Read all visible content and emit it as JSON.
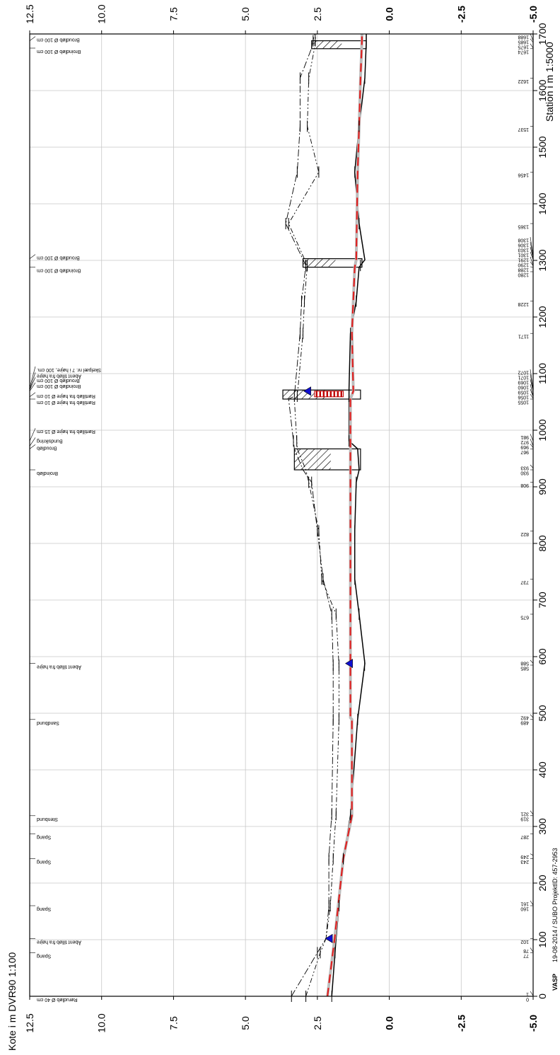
{
  "page": {
    "y_axis_title": "Kote i m DVR90 1:100",
    "x_axis_title": "Station i m 1:5000",
    "footer": {
      "logo": "VASP",
      "info": "19-08-2014 / SUBO   ProjektID: 457-2953"
    }
  },
  "chart_data": {
    "type": "line",
    "orientation": "rotated-90-clockwise",
    "grid": true,
    "x_ticks": [
      "0",
      "100",
      "200",
      "300",
      "400",
      "500",
      "600",
      "700",
      "800",
      "900",
      "1000",
      "1100",
      "1200",
      "1300",
      "1400",
      "1500",
      "1600",
      "1700"
    ],
    "x_range": [
      0,
      1700
    ],
    "y_ticks": [
      "12.5",
      "10.0",
      "7.5",
      "5.0",
      "2.5",
      "0.0",
      "-2.5",
      "-5.0"
    ],
    "y_range": [
      -5,
      12.5
    ],
    "station_labels": [
      "0",
      "1",
      "77",
      "78",
      "102",
      "160",
      "161",
      "243",
      "249",
      "287",
      "319",
      "321",
      "489",
      "492",
      "585",
      "588",
      "675",
      "737",
      "822",
      "908",
      "930",
      "933",
      "967",
      "969",
      "972",
      "981",
      "1055",
      "1056",
      "1059",
      "1060",
      "1069",
      "1071",
      "1072",
      "1171",
      "1228",
      "1280",
      "1288",
      "1290",
      "1291",
      "1301",
      "1303",
      "1306",
      "1308",
      "1365",
      "1456",
      "1537",
      "1622",
      "1674",
      "1675",
      "1685",
      "1688"
    ],
    "features": [
      {
        "station": 0,
        "label": "Rørudløb Ø 40 cm"
      },
      {
        "station": 77,
        "label": "Spang"
      },
      {
        "station": 102,
        "label": "Åbent tilløb fra højre"
      },
      {
        "station": 160,
        "label": "Spang"
      },
      {
        "station": 243,
        "label": "Spang"
      },
      {
        "station": 287,
        "label": "Spang"
      },
      {
        "station": 319,
        "label": "Stenbund"
      },
      {
        "station": 489,
        "label": "Sandbund"
      },
      {
        "station": 588,
        "label": "Åbent tilløb fra højre"
      },
      {
        "station": 930,
        "label": "Broindløb"
      },
      {
        "station": 967,
        "label": "Broudløb"
      },
      {
        "station": 972,
        "label": "Bundsikring"
      },
      {
        "station": 981,
        "label": "Rørtilløb fra højre Ø 15 cm"
      },
      {
        "station": 1055,
        "label": "Rørtilløb fra højre Ø 10 cm"
      },
      {
        "station": 1059,
        "label": "Rørtilløb fra højre Ø 10 cm"
      },
      {
        "station": 1069,
        "label": "Broindløb Ø 100 cm"
      },
      {
        "station": 1071,
        "label": "Broudløb Ø 100 cm"
      },
      {
        "station": 1072,
        "label": "Åbent tilløb fra højre"
      },
      {
        "station": 1075,
        "label": "Skelpæl nr. 7 i højre, 100 cm."
      },
      {
        "station": 1288,
        "label": "Broindløb Ø 100 cm"
      },
      {
        "station": 1303,
        "label": "Broudløb Ø 100 cm"
      },
      {
        "station": 1675,
        "label": "Broindløb Ø 100 cm"
      },
      {
        "station": 1688,
        "label": "Broudløb Ø 100 cm"
      }
    ],
    "series": [
      {
        "name": "",
        "style": "solid",
        "color": "#000000",
        "x": [
          0,
          102,
          243,
          319,
          489,
          588,
          675,
          737,
          822,
          908,
          930,
          967,
          981,
          1055,
          1072,
          1171,
          1228,
          1288,
          1301,
          1365,
          1456,
          1537,
          1622,
          1685,
          1700
        ],
        "y": [
          2.0,
          1.85,
          1.6,
          1.35,
          1.1,
          0.85,
          1.05,
          1.2,
          1.2,
          1.15,
          1.05,
          1.1,
          1.4,
          1.4,
          1.4,
          1.35,
          1.15,
          1.05,
          0.85,
          1.05,
          1.2,
          1.05,
          0.85,
          0.8,
          0.8
        ]
      },
      {
        "name": "",
        "style": "dash-red",
        "color": "#e02020",
        "x": [
          0,
          102,
          243,
          319,
          321,
          489,
          492,
          588,
          930,
          967,
          981,
          1055,
          1069,
          1171,
          1288,
          1301,
          1456,
          1537,
          1622,
          1688,
          1700
        ],
        "y": [
          2.15,
          1.9,
          1.6,
          1.3,
          1.3,
          1.3,
          1.35,
          1.35,
          1.35,
          1.35,
          1.35,
          1.35,
          1.25,
          1.3,
          1.2,
          1.15,
          1.1,
          1.05,
          1.0,
          0.95,
          0.95
        ]
      },
      {
        "name": "",
        "style": "dash-dot",
        "color": "#000000",
        "x": [
          0,
          77,
          102,
          160,
          243,
          287,
          321,
          489,
          585,
          675,
          737,
          822,
          908,
          930,
          967,
          1055,
          1060,
          1171,
          1228,
          1291,
          1365,
          1456,
          1537,
          1622,
          1675,
          1700
        ],
        "y": [
          3.4,
          2.5,
          2.2,
          2.1,
          2.1,
          2.05,
          2.0,
          1.95,
          1.95,
          2.0,
          2.3,
          2.5,
          2.7,
          3.0,
          3.3,
          3.5,
          3.3,
          3.1,
          3.05,
          2.9,
          3.6,
          3.2,
          3.1,
          3.1,
          2.7,
          2.6
        ]
      },
      {
        "name": "",
        "style": "dash-dot-dot",
        "color": "#000000",
        "x": [
          0,
          77,
          102,
          160,
          243,
          287,
          321,
          489,
          585,
          675,
          737,
          822,
          908,
          930,
          967,
          1055,
          1060,
          1171,
          1228,
          1291,
          1365,
          1456,
          1537,
          1622,
          1675,
          1700
        ],
        "y": [
          2.9,
          2.4,
          2.2,
          2.05,
          1.95,
          1.9,
          1.85,
          1.75,
          1.75,
          1.85,
          2.35,
          2.45,
          2.8,
          2.9,
          3.2,
          3.3,
          3.2,
          3.0,
          2.95,
          2.85,
          3.5,
          2.45,
          2.85,
          2.8,
          2.6,
          2.55
        ]
      }
    ],
    "bridges": [
      {
        "from": 930,
        "to": 967,
        "top": 3.3,
        "bottom": 1.0
      },
      {
        "from": 1055,
        "to": 1071,
        "top": 3.7,
        "bottom": 1.0
      },
      {
        "from": 1288,
        "to": 1303,
        "top": 3.0,
        "bottom": 0.95
      },
      {
        "from": 1674,
        "to": 1688,
        "top": 2.7,
        "bottom": 0.8
      }
    ],
    "red_hatch": {
      "from": 1059,
      "to": 1069,
      "y_low": 1.6,
      "y_high": 2.6
    },
    "water_markers": [
      {
        "station": 102,
        "y": 2.1
      },
      {
        "station": 588,
        "y": 1.4
      },
      {
        "station": 1069,
        "y": 2.85
      }
    ],
    "cross_ticks": [
      0,
      77,
      160,
      243,
      321,
      489,
      585,
      675,
      737,
      822,
      908,
      981,
      1060,
      1171,
      1228,
      1291,
      1365,
      1456,
      1537,
      1622,
      1688
    ]
  }
}
